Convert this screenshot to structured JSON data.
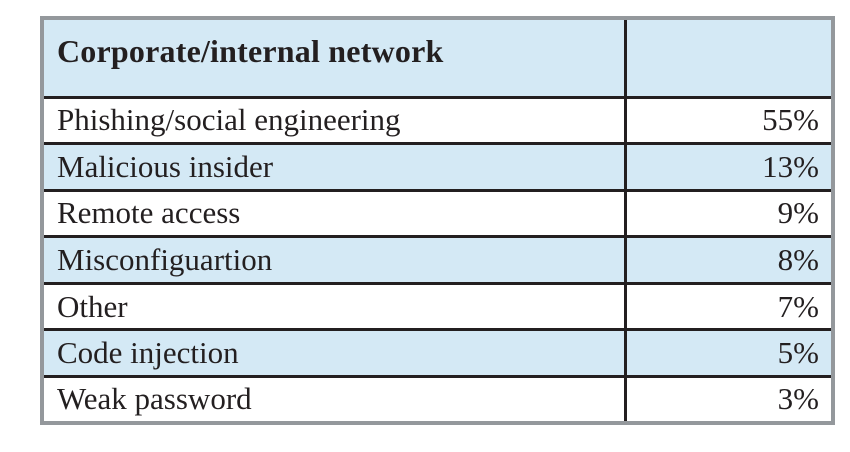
{
  "table": {
    "header": {
      "label": "Corporate/internal network",
      "value": ""
    },
    "rows": [
      {
        "label": "Phishing/social engineering",
        "value": "55%"
      },
      {
        "label": "Malicious insider",
        "value": "13%"
      },
      {
        "label": "Remote access",
        "value": "9%"
      },
      {
        "label": "Misconfiguartion",
        "value": "8%"
      },
      {
        "label": "Other",
        "value": "7%"
      },
      {
        "label": "Code injection",
        "value": "5%"
      },
      {
        "label": "Weak password",
        "value": "3%"
      }
    ],
    "colors": {
      "row_highlight": "#d4e9f5",
      "row_base": "#ffffff",
      "inner_rule": "#231f20",
      "outer_border": "#94989c",
      "text": "#231f20"
    }
  },
  "chart_data": {
    "type": "table",
    "title": "Corporate/internal network",
    "categories": [
      "Phishing/social engineering",
      "Malicious insider",
      "Remote access",
      "Misconfiguartion",
      "Other",
      "Code injection",
      "Weak password"
    ],
    "values": [
      55,
      13,
      9,
      8,
      7,
      5,
      3
    ],
    "value_labels": [
      "55%",
      "13%",
      "9%",
      "8%",
      "7%",
      "5%",
      "3%"
    ],
    "value_format": "percent",
    "layout": "two-column table, labels left-aligned, values right-aligned, alternating light-blue row shading"
  }
}
